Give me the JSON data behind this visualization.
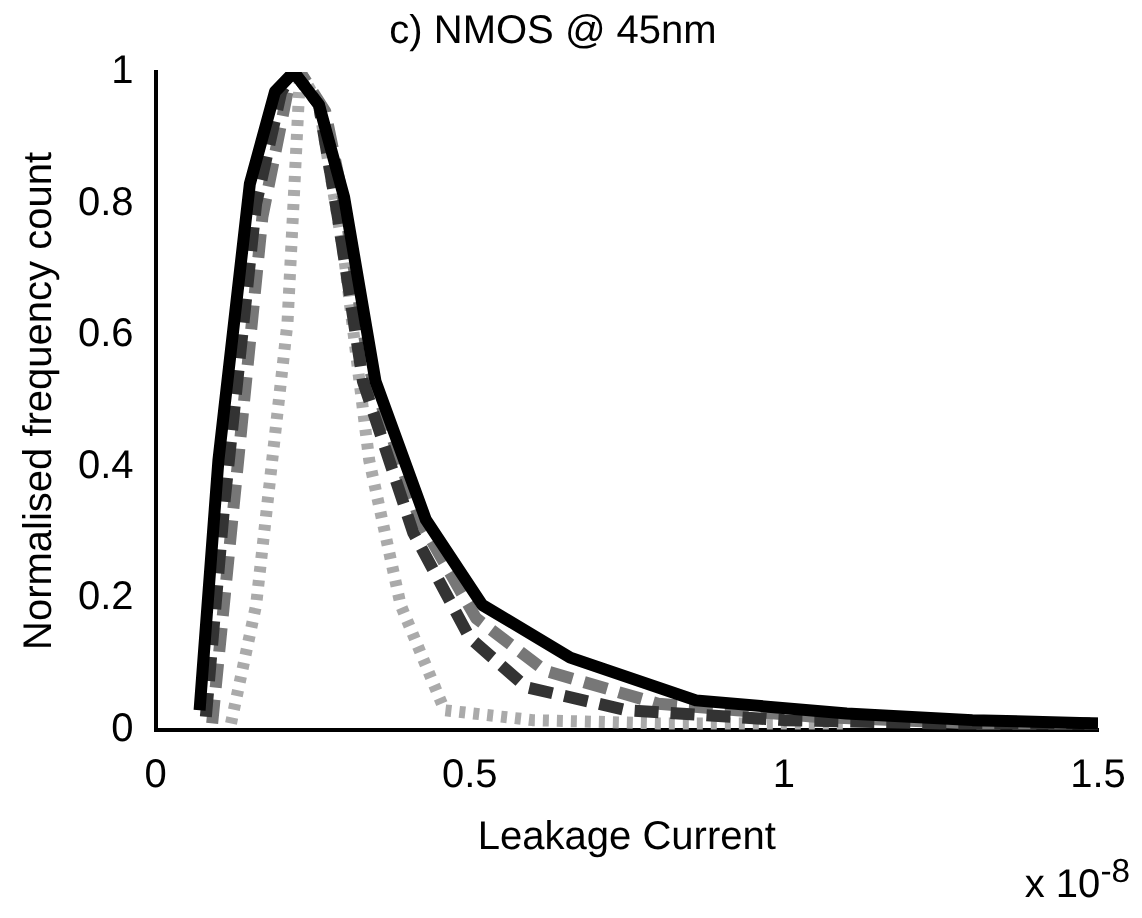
{
  "chart_data": {
    "type": "line",
    "title": "c) NMOS @ 45nm",
    "xlabel": "Leakage Current",
    "ylabel": "Normalised frequency count",
    "annotations": [
      "x 10$^{-8}$"
    ],
    "xlim": [
      0,
      1.5
    ],
    "xticks": [
      0,
      0.5,
      1,
      1.5
    ],
    "ylim": [
      0,
      1
    ],
    "yticks": [
      0,
      0.2,
      0.4,
      0.6,
      0.8,
      1
    ],
    "grid": false,
    "legend": false,
    "marker": "none",
    "series": [
      {
        "color": "#000000",
        "line_style": "solid",
        "x": [
          0.07,
          0.1,
          0.15,
          0.19,
          0.22,
          0.26,
          0.3,
          0.35,
          0.43,
          0.52,
          0.66,
          0.86,
          1.1,
          1.3,
          1.5
        ],
        "values": [
          0.03,
          0.41,
          0.83,
          0.97,
          1,
          0.95,
          0.81,
          0.53,
          0.32,
          0.19,
          0.11,
          0.045,
          0.025,
          0.015,
          0.01
        ]
      },
      {
        "color": "#333333",
        "line_style": "dashed",
        "x": [
          0.08,
          0.11,
          0.16,
          0.2,
          0.22,
          0.26,
          0.29,
          0.33,
          0.41,
          0.5,
          0.59,
          0.75,
          1,
          1.25,
          1.5
        ],
        "values": [
          0.02,
          0.35,
          0.8,
          0.97,
          1,
          0.95,
          0.78,
          0.53,
          0.3,
          0.14,
          0.065,
          0.03,
          0.015,
          0.01,
          0.01
        ]
      },
      {
        "color": "#777777",
        "line_style": "dashed",
        "x": [
          0.09,
          0.12,
          0.17,
          0.21,
          0.23,
          0.27,
          0.3,
          0.34,
          0.42,
          0.51,
          0.62,
          0.8,
          1.05,
          1.3,
          1.5
        ],
        "values": [
          0.01,
          0.3,
          0.78,
          0.97,
          1,
          0.94,
          0.8,
          0.55,
          0.32,
          0.17,
          0.09,
          0.04,
          0.02,
          0.01,
          0.01
        ]
      },
      {
        "color": "#aaaaaa",
        "line_style": "dotted",
        "x": [
          0.12,
          0.16,
          0.21,
          0.23,
          0.26,
          0.3,
          0.34,
          0.39,
          0.46,
          0.6,
          0.8,
          1.1
        ],
        "values": [
          0.01,
          0.19,
          0.62,
          1,
          0.95,
          0.72,
          0.41,
          0.19,
          0.03,
          0.015,
          0.01,
          0.01
        ]
      }
    ]
  }
}
